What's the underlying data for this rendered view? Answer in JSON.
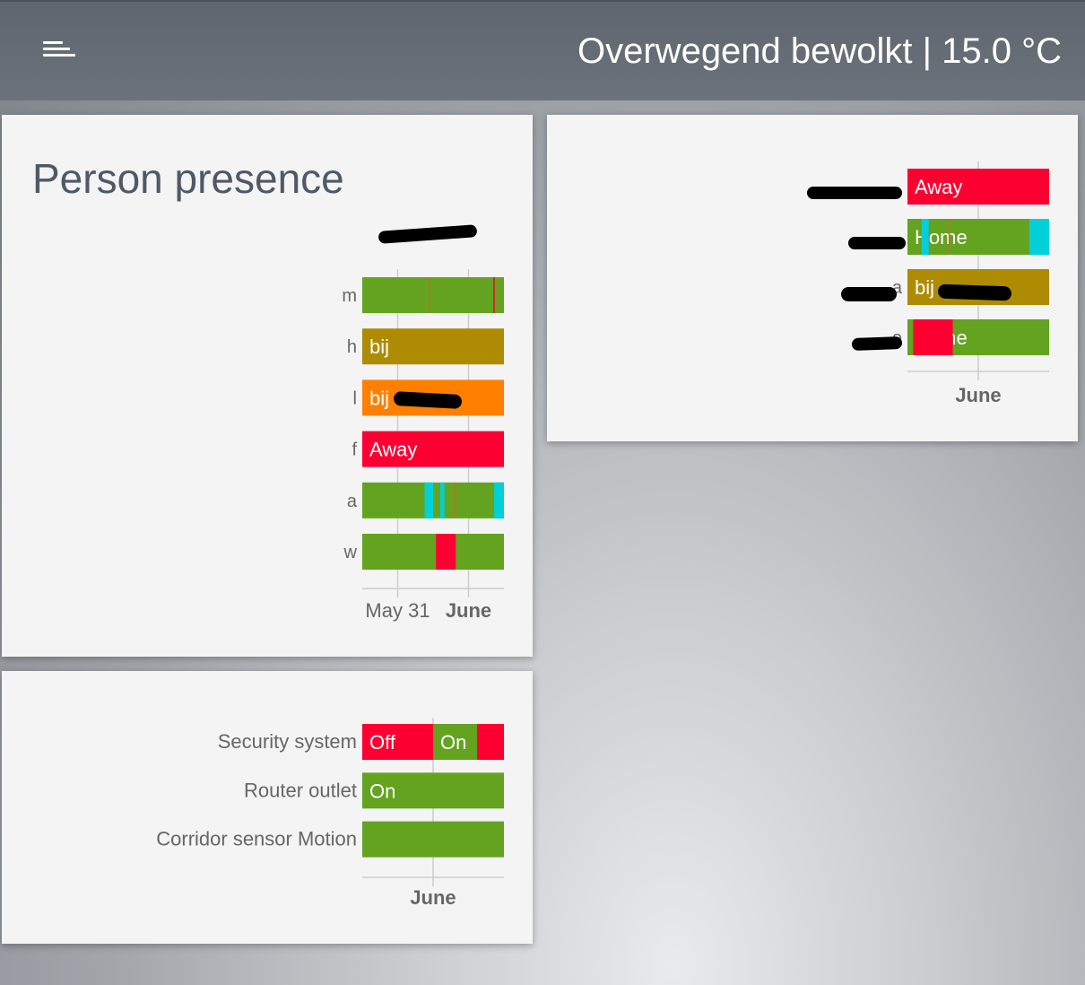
{
  "header": {
    "title": "Overwegend bewolkt | 15.0 °C",
    "menu_icon": "hamburger-menu-icon"
  },
  "colors": {
    "home": "#63a31f",
    "away": "#fd0032",
    "bij_olive": "#ad8b02",
    "bij_orange": "#ff8000",
    "cyan": "#00d0d8",
    "card_bg": "#f4f4f4",
    "header_bg": "#666d76"
  },
  "cards": [
    {
      "id": "person-presence",
      "title": "Person presence",
      "x_ticks": [
        {
          "label": "May 31",
          "bold": false,
          "pos": 0.25
        },
        {
          "label": "June",
          "bold": true,
          "pos": 0.75
        }
      ],
      "rows": [
        {
          "label": "m",
          "segments": [
            {
              "from": 0,
              "to": 1,
              "color": "#63a31f",
              "label": ""
            },
            {
              "from": 0.47,
              "to": 0.478,
              "color": "#c96a2a",
              "label": ""
            },
            {
              "from": 0.925,
              "to": 0.935,
              "color": "#fd0032",
              "label": ""
            }
          ]
        },
        {
          "label": "h",
          "segments": [
            {
              "from": 0,
              "to": 1,
              "color": "#ad8b02",
              "label": "bij"
            }
          ],
          "redacted": true
        },
        {
          "label": "l",
          "segments": [
            {
              "from": 0,
              "to": 1,
              "color": "#ff8000",
              "label": "bij"
            }
          ],
          "redacted": true
        },
        {
          "label": "f",
          "segments": [
            {
              "from": 0,
              "to": 1,
              "color": "#fd0032",
              "label": "Away"
            }
          ]
        },
        {
          "label": "a",
          "segments": [
            {
              "from": 0,
              "to": 1,
              "color": "#63a31f",
              "label": ""
            },
            {
              "from": 0.44,
              "to": 0.5,
              "color": "#00d0d8",
              "label": ""
            },
            {
              "from": 0.55,
              "to": 0.58,
              "color": "#00d0d8",
              "label": ""
            },
            {
              "from": 0.65,
              "to": 0.66,
              "color": "#c96a2a",
              "label": ""
            },
            {
              "from": 0.93,
              "to": 1,
              "color": "#00d0d8",
              "label": ""
            }
          ]
        },
        {
          "label": "w",
          "segments": [
            {
              "from": 0,
              "to": 1,
              "color": "#63a31f",
              "label": ""
            },
            {
              "from": 0.52,
              "to": 0.66,
              "color": "#fd0032",
              "label": ""
            }
          ]
        }
      ]
    },
    {
      "id": "presence-2",
      "title": "",
      "x_ticks": [
        {
          "label": "June",
          "bold": true,
          "pos": 0.5
        }
      ],
      "rows": [
        {
          "label": "",
          "segments": [
            {
              "from": 0,
              "to": 1,
              "color": "#fd0032",
              "label": "Away"
            }
          ],
          "label_redacted": true
        },
        {
          "label": "",
          "segments": [
            {
              "from": 0,
              "to": 1,
              "color": "#63a31f",
              "label": "Home"
            },
            {
              "from": 0.1,
              "to": 0.15,
              "color": "#00d0d8",
              "label": ""
            },
            {
              "from": 0.29,
              "to": 0.3,
              "color": "#c96a2a",
              "label": ""
            },
            {
              "from": 0.86,
              "to": 1,
              "color": "#00d0d8",
              "label": ""
            }
          ],
          "label_redacted": true
        },
        {
          "label": "a",
          "segments": [
            {
              "from": 0,
              "to": 1,
              "color": "#ad8b02",
              "label": "bij"
            }
          ],
          "label_redacted": true,
          "redacted": true
        },
        {
          "label": "e",
          "segments": [
            {
              "from": 0,
              "to": 1,
              "color": "#63a31f",
              "label": "Home"
            },
            {
              "from": 0.04,
              "to": 0.32,
              "color": "#fd0032",
              "label": ""
            }
          ],
          "label_redacted": true
        }
      ]
    },
    {
      "id": "devices",
      "title": "",
      "x_ticks": [
        {
          "label": "June",
          "bold": true,
          "pos": 0.5
        }
      ],
      "rows": [
        {
          "label": "Security system",
          "segments": [
            {
              "from": 0,
              "to": 0.5,
              "color": "#fd0032",
              "label": "Off"
            },
            {
              "from": 0.5,
              "to": 0.81,
              "color": "#63a31f",
              "label": "On"
            },
            {
              "from": 0.81,
              "to": 1,
              "color": "#fd0032",
              "label": ""
            }
          ]
        },
        {
          "label": "Router outlet",
          "segments": [
            {
              "from": 0,
              "to": 1,
              "color": "#63a31f",
              "label": "On"
            }
          ]
        },
        {
          "label": "Corridor sensor Motion",
          "segments": [
            {
              "from": 0,
              "to": 1,
              "color": "#63a31f",
              "label": ""
            }
          ]
        }
      ]
    }
  ]
}
